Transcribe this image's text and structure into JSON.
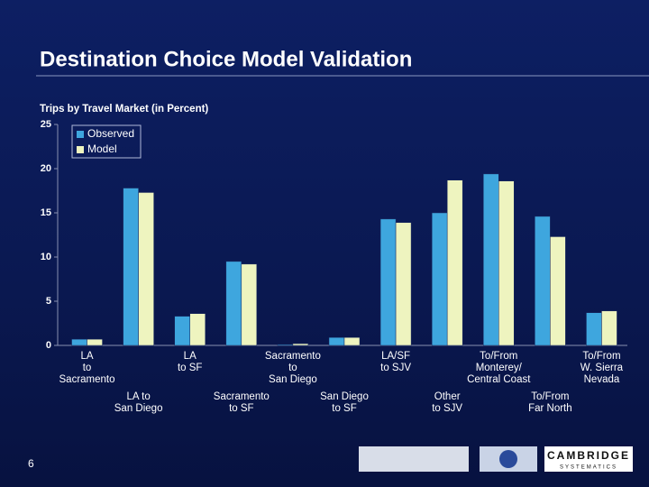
{
  "slide": {
    "title": "Destination Choice Model Validation",
    "page_number": "6",
    "logo_text": [
      "CAMBRIDGE",
      "SYSTEMATICS"
    ]
  },
  "chart_data": {
    "type": "bar",
    "title": "Trips by Travel Market (in Percent)",
    "categories": [
      "LA\nto\nSacramento",
      "LA to\nSan Diego",
      "LA\nto SF",
      "Sacramento\nto SF",
      "Sacramento\nto\nSan Diego",
      "San Diego\nto SF",
      "LA/SF\nto SJV",
      "Other\nto SJV",
      "To/From\nMonterey/\nCentral Coast",
      "To/From\nFar North",
      "To/From\nW. Sierra\nNevada"
    ],
    "series": [
      {
        "name": "Observed",
        "color": "#3ea6de",
        "values": [
          0.7,
          17.8,
          3.3,
          9.5,
          0.1,
          0.9,
          14.3,
          15.0,
          19.4,
          14.6,
          3.7
        ]
      },
      {
        "name": "Model",
        "color": "#eef4bf",
        "values": [
          0.7,
          17.3,
          3.6,
          9.2,
          0.2,
          0.9,
          13.9,
          18.7,
          18.6,
          12.3,
          3.9
        ]
      }
    ],
    "ylim": [
      0,
      25
    ],
    "yticks": [
      0,
      5,
      10,
      15,
      20,
      25
    ],
    "grid": false,
    "legend": "upper left"
  }
}
